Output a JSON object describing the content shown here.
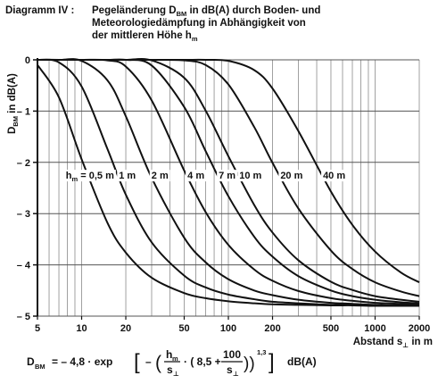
{
  "chart_data": {
    "type": "line",
    "title_prefix": "Diagramm IV :",
    "title_lines": [
      [
        "Pegeländerung D",
        "BM",
        " in dB(A) durch Boden- und"
      ],
      [
        "Meteorologiedämpfung in Abhängigkeit von"
      ],
      [
        "der mittleren Höhe  h",
        "m"
      ]
    ],
    "y_label": [
      "D",
      "BM",
      "  in dB(A)"
    ],
    "x_label": [
      "Abstand s",
      "⊥",
      "  in m"
    ],
    "label_prefix": [
      "h",
      "m",
      " = "
    ],
    "formula": [
      "D",
      "BM",
      "= –   4,8 · exp",
      "[",
      "–",
      "(",
      "h",
      "m",
      "s",
      "⊥",
      "· ( 8,5 +",
      "100",
      "s",
      "⊥",
      "))",
      "1,3",
      "]",
      "dB(A)"
    ],
    "x": [
      5,
      7,
      10,
      15,
      20,
      30,
      50,
      70,
      100,
      150,
      200,
      300,
      500,
      700,
      1000,
      1500,
      2000
    ],
    "series": [
      {
        "name": "0,5 m",
        "color": "#111111",
        "values": [
          -0.1,
          -0.73,
          -1.94,
          -3.18,
          -3.76,
          -4.25,
          -4.55,
          -4.65,
          -4.71,
          -4.75,
          -4.77,
          -4.78,
          -4.79,
          -4.79,
          -4.8,
          -4.8,
          -4.8
        ]
      },
      {
        "name": "1 m",
        "color": "#111111",
        "values": [
          0,
          -0.05,
          -0.52,
          -1.74,
          -2.63,
          -3.56,
          -4.21,
          -4.44,
          -4.58,
          -4.67,
          -4.72,
          -4.75,
          -4.78,
          -4.78,
          -4.79,
          -4.8,
          -4.8
        ]
      },
      {
        "name": "2 m",
        "color": "#111111",
        "values": [
          0,
          0,
          -0.02,
          -0.4,
          -1.1,
          -2.3,
          -3.47,
          -3.95,
          -4.28,
          -4.5,
          -4.59,
          -4.68,
          -4.74,
          -4.76,
          -4.78,
          -4.79,
          -4.79
        ]
      },
      {
        "name": "4 m",
        "color": "#111111",
        "values": [
          0,
          0,
          0,
          -0.01,
          -0.13,
          -0.79,
          -2.16,
          -2.97,
          -3.61,
          -4.09,
          -4.31,
          -4.51,
          -4.65,
          -4.7,
          -4.74,
          -4.76,
          -4.78
        ]
      },
      {
        "name": "7 m",
        "color": "#111111",
        "values": [
          0,
          0,
          0,
          0,
          0,
          -0.11,
          -0.92,
          -1.78,
          -2.66,
          -3.45,
          -3.84,
          -4.22,
          -4.5,
          -4.61,
          -4.68,
          -4.73,
          -4.75
        ]
      },
      {
        "name": "10 m",
        "color": "#111111",
        "values": [
          0,
          0,
          0,
          0,
          0,
          -0.01,
          -0.35,
          -0.99,
          -1.88,
          -2.83,
          -3.37,
          -3.91,
          -4.33,
          -4.49,
          -4.61,
          -4.68,
          -4.72
        ]
      },
      {
        "name": "20 m",
        "color": "#111111",
        "values": [
          0,
          0,
          0,
          0,
          0,
          0,
          -0.01,
          -0.1,
          -0.48,
          -1.31,
          -2.01,
          -2.9,
          -3.72,
          -4.08,
          -4.34,
          -4.52,
          -4.61
        ]
      },
      {
        "name": "40 m",
        "color": "#111111",
        "values": [
          0,
          0,
          0,
          0,
          0,
          0,
          0,
          0,
          -0.02,
          -0.2,
          -0.56,
          -1.39,
          -2.57,
          -3.22,
          -3.74,
          -4.15,
          -4.34
        ]
      }
    ],
    "xlim": [
      5,
      2000
    ],
    "ylim": [
      -5,
      0
    ],
    "x_log": true,
    "xticks": [
      5,
      10,
      20,
      50,
      100,
      200,
      500,
      1000,
      2000
    ],
    "xgrid": [
      5,
      6,
      7,
      8,
      9,
      10,
      20,
      30,
      40,
      50,
      60,
      70,
      80,
      90,
      100,
      200,
      300,
      400,
      500,
      600,
      700,
      800,
      900,
      1000,
      2000
    ],
    "yticks": [
      0,
      {
        "value": -1,
        "label": "– 1"
      },
      {
        "value": -2,
        "label": "– 2"
      },
      {
        "value": -3,
        "label": "– 3"
      },
      {
        "value": -4,
        "label": "– 4"
      },
      {
        "value": -5,
        "label": "– 5"
      }
    ],
    "grid": true,
    "grid_color": "#8a8a8a"
  }
}
